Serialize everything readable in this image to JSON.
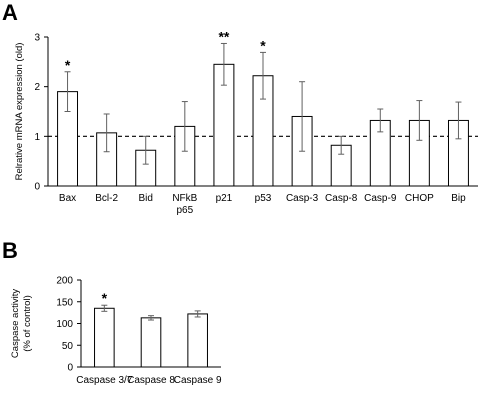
{
  "chart_data": [
    {
      "panel": "A",
      "type": "bar",
      "title": "",
      "xlabel": "",
      "ylabel": "Relrative mRNA expression (old)",
      "ylim": [
        0,
        3
      ],
      "yticks": [
        0,
        1,
        2,
        3
      ],
      "grid": false,
      "categories": [
        "Bax",
        "Bcl-2",
        "Bid",
        "NFkB\np65",
        "p21",
        "p53",
        "Casp-3",
        "Casp-8",
        "Casp-9",
        "CHOP",
        "Bip"
      ],
      "values": [
        1.9,
        1.07,
        0.72,
        1.2,
        2.45,
        2.22,
        1.4,
        0.82,
        1.32,
        1.32,
        1.32
      ],
      "errors": [
        0.4,
        0.38,
        0.28,
        0.5,
        0.42,
        0.47,
        0.7,
        0.18,
        0.23,
        0.4,
        0.37
      ],
      "annotations": [
        "*",
        "",
        "",
        "",
        "**",
        "*",
        "",
        "",
        "",
        "",
        ""
      ],
      "reference_line": 1,
      "colors": {
        "bar_fill": "#ffffff",
        "bar_stroke": "#000000",
        "error": "#606060"
      }
    },
    {
      "panel": "B",
      "type": "bar",
      "title": "",
      "xlabel": "",
      "ylabel": "Caspase activity\n(% of control)",
      "ylim": [
        0,
        200
      ],
      "yticks": [
        0,
        50,
        100,
        150,
        200
      ],
      "grid": false,
      "categories": [
        "Caspase 3/7",
        "Caspase 8",
        "Caspase 9"
      ],
      "values": [
        135,
        113,
        122
      ],
      "errors": [
        7,
        5,
        7
      ],
      "annotations": [
        "*",
        "",
        ""
      ],
      "colors": {
        "bar_fill": "#ffffff",
        "bar_stroke": "#000000",
        "error": "#606060"
      }
    }
  ]
}
